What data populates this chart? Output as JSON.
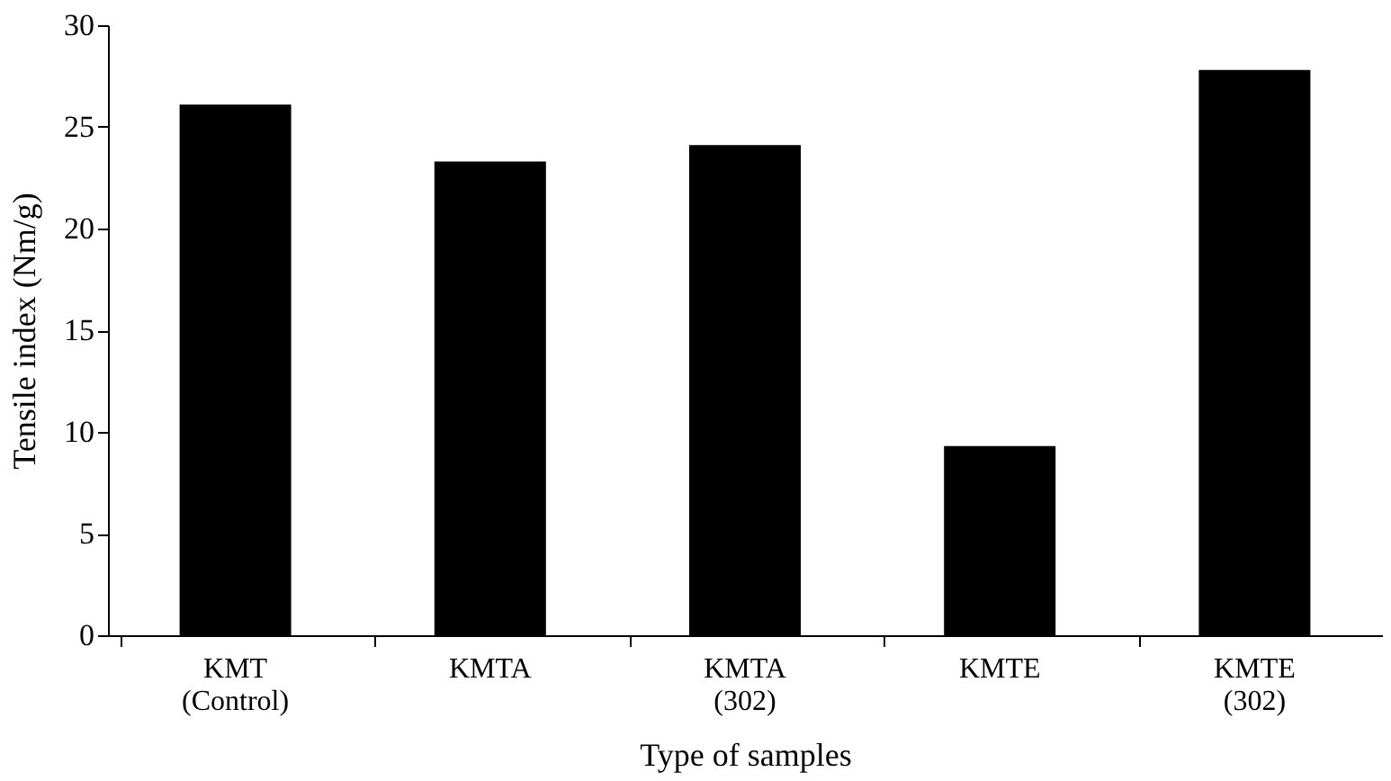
{
  "chart_data": {
    "type": "bar",
    "xlabel": "Type of samples",
    "ylabel": "Tensile index (Nm/g)",
    "categories": [
      "KMT (Control)",
      "KMTA",
      "KMTA (302)",
      "KMTE",
      "KMTE (302)"
    ],
    "values": [
      26.1,
      23.3,
      24.1,
      9.3,
      27.8
    ],
    "color": "#000000",
    "ylim": [
      0,
      30
    ],
    "yticks": [
      0,
      5,
      10,
      15,
      20,
      25,
      30
    ],
    "grid": false
  }
}
